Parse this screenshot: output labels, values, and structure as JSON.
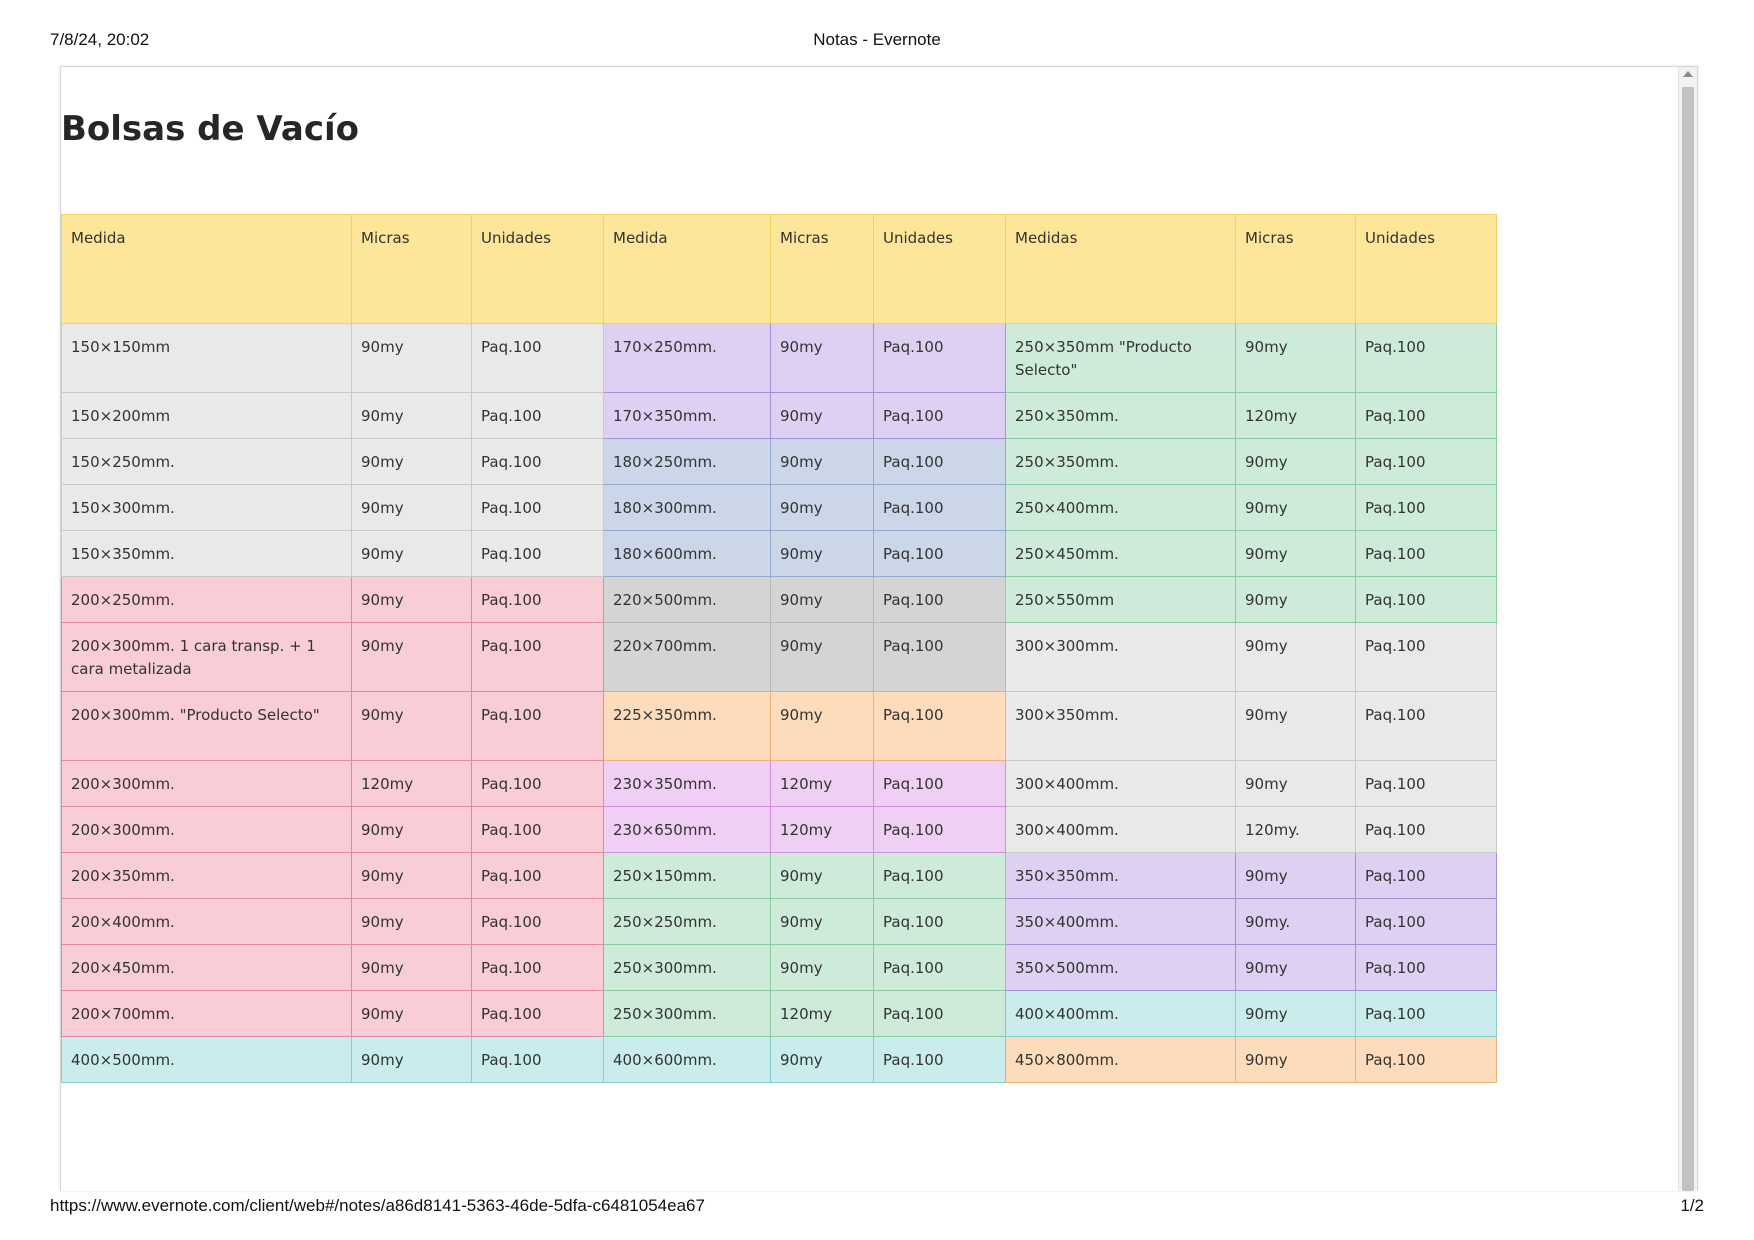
{
  "print_header": {
    "date": "7/8/24, 20:02",
    "title": "Notas - Evernote"
  },
  "print_footer": {
    "url": "https://www.evernote.com/client/web#/notes/a86d8141-5363-46de-5dfa-c6481054ea67",
    "page": "1/2"
  },
  "note": {
    "title": "Bolsas de Vacío"
  },
  "table": {
    "headers": [
      "Medida",
      "Micras",
      "Unidades",
      "Medida",
      "Micras",
      "Unidades",
      "Medidas",
      "Micras",
      "Unidades"
    ],
    "rows": [
      [
        [
          "150×150mm",
          "gray"
        ],
        [
          "90my",
          "gray"
        ],
        [
          "Paq.100",
          "gray"
        ],
        [
          "170×250mm.",
          "purple"
        ],
        [
          "90my",
          "purple"
        ],
        [
          "Paq.100",
          "purple"
        ],
        [
          "250×350mm \"Producto Selecto\"",
          "green"
        ],
        [
          "90my",
          "green"
        ],
        [
          "Paq.100",
          "green"
        ]
      ],
      [
        [
          "150×200mm",
          "gray"
        ],
        [
          "90my",
          "gray"
        ],
        [
          "Paq.100",
          "gray"
        ],
        [
          "170×350mm.",
          "purple"
        ],
        [
          "90my",
          "purple"
        ],
        [
          "Paq.100",
          "purple"
        ],
        [
          "250×350mm.",
          "green"
        ],
        [
          "120my",
          "green"
        ],
        [
          "Paq.100",
          "green"
        ]
      ],
      [
        [
          "150×250mm.",
          "gray"
        ],
        [
          "90my",
          "gray"
        ],
        [
          "Paq.100",
          "gray"
        ],
        [
          "180×250mm.",
          "blue"
        ],
        [
          "90my",
          "blue"
        ],
        [
          "Paq.100",
          "blue"
        ],
        [
          "250×350mm.",
          "green"
        ],
        [
          "90my",
          "green"
        ],
        [
          "Paq.100",
          "green"
        ]
      ],
      [
        [
          "150×300mm.",
          "gray"
        ],
        [
          "90my",
          "gray"
        ],
        [
          "Paq.100",
          "gray"
        ],
        [
          "180×300mm.",
          "blue"
        ],
        [
          "90my",
          "blue"
        ],
        [
          "Paq.100",
          "blue"
        ],
        [
          "250×400mm.",
          "green"
        ],
        [
          "90my",
          "green"
        ],
        [
          "Paq.100",
          "green"
        ]
      ],
      [
        [
          "150×350mm.",
          "gray"
        ],
        [
          "90my",
          "gray"
        ],
        [
          "Paq.100",
          "gray"
        ],
        [
          "180×600mm.",
          "blue"
        ],
        [
          "90my",
          "blue"
        ],
        [
          "Paq.100",
          "blue"
        ],
        [
          "250×450mm.",
          "green"
        ],
        [
          "90my",
          "green"
        ],
        [
          "Paq.100",
          "green"
        ]
      ],
      [
        [
          "200×250mm.",
          "pink"
        ],
        [
          "90my",
          "pink"
        ],
        [
          "Paq.100",
          "pink"
        ],
        [
          "220×500mm.",
          "dgray"
        ],
        [
          "90my",
          "dgray"
        ],
        [
          "Paq.100",
          "dgray"
        ],
        [
          "250×550mm",
          "green"
        ],
        [
          "90my",
          "green"
        ],
        [
          "Paq.100",
          "green"
        ]
      ],
      [
        [
          "200×300mm. 1 cara transp. + 1 cara metalizada",
          "pink"
        ],
        [
          "90my",
          "pink"
        ],
        [
          "Paq.100",
          "pink"
        ],
        [
          "220×700mm.",
          "dgray"
        ],
        [
          "90my",
          "dgray"
        ],
        [
          "Paq.100",
          "dgray"
        ],
        [
          "300×300mm.",
          "gray"
        ],
        [
          "90my",
          "gray"
        ],
        [
          "Paq.100",
          "gray"
        ]
      ],
      [
        [
          "200×300mm. \"Producto Selecto\"",
          "pink"
        ],
        [
          "90my",
          "pink"
        ],
        [
          "Paq.100",
          "pink"
        ],
        [
          "225×350mm.",
          "peach"
        ],
        [
          "90my",
          "peach"
        ],
        [
          "Paq.100",
          "peach"
        ],
        [
          "300×350mm.",
          "gray"
        ],
        [
          "90my",
          "gray"
        ],
        [
          "Paq.100",
          "gray"
        ]
      ],
      [
        [
          "200×300mm.",
          "pink"
        ],
        [
          "120my",
          "pink"
        ],
        [
          "Paq.100",
          "pink"
        ],
        [
          "230×350mm.",
          "lilac"
        ],
        [
          "120my",
          "lilac"
        ],
        [
          "Paq.100",
          "lilac"
        ],
        [
          "300×400mm.",
          "gray"
        ],
        [
          "90my",
          "gray"
        ],
        [
          "Paq.100",
          "gray"
        ]
      ],
      [
        [
          "200×300mm.",
          "pink"
        ],
        [
          "90my",
          "pink"
        ],
        [
          "Paq.100",
          "pink"
        ],
        [
          "230×650mm.",
          "lilac"
        ],
        [
          "120my",
          "lilac"
        ],
        [
          "Paq.100",
          "lilac"
        ],
        [
          "300×400mm.",
          "gray"
        ],
        [
          "120my.",
          "gray"
        ],
        [
          "Paq.100",
          "gray"
        ]
      ],
      [
        [
          "200×350mm.",
          "pink"
        ],
        [
          "90my",
          "pink"
        ],
        [
          "Paq.100",
          "pink"
        ],
        [
          "250×150mm.",
          "green"
        ],
        [
          "90my",
          "green"
        ],
        [
          "Paq.100",
          "green"
        ],
        [
          "350×350mm.",
          "purple"
        ],
        [
          "90my",
          "purple"
        ],
        [
          "Paq.100",
          "purple"
        ]
      ],
      [
        [
          "200×400mm.",
          "pink"
        ],
        [
          "90my",
          "pink"
        ],
        [
          "Paq.100",
          "pink"
        ],
        [
          "250×250mm.",
          "green"
        ],
        [
          "90my",
          "green"
        ],
        [
          "Paq.100",
          "green"
        ],
        [
          "350×400mm.",
          "purple"
        ],
        [
          "90my.",
          "purple"
        ],
        [
          "Paq.100",
          "purple"
        ]
      ],
      [
        [
          "200×450mm.",
          "pink"
        ],
        [
          "90my",
          "pink"
        ],
        [
          "Paq.100",
          "pink"
        ],
        [
          "250×300mm.",
          "green"
        ],
        [
          "90my",
          "green"
        ],
        [
          "Paq.100",
          "green"
        ],
        [
          "350×500mm.",
          "purple"
        ],
        [
          "90my",
          "purple"
        ],
        [
          "Paq.100",
          "purple"
        ]
      ],
      [
        [
          "200×700mm.",
          "pink"
        ],
        [
          "90my",
          "pink"
        ],
        [
          "Paq.100",
          "pink"
        ],
        [
          "250×300mm.",
          "green"
        ],
        [
          "120my",
          "green"
        ],
        [
          "Paq.100",
          "green"
        ],
        [
          "400×400mm.",
          "cyan"
        ],
        [
          "90my",
          "cyan"
        ],
        [
          "Paq.100",
          "cyan"
        ]
      ],
      [
        [
          "400×500mm.",
          "cyan"
        ],
        [
          "90my",
          "cyan"
        ],
        [
          "Paq.100",
          "cyan"
        ],
        [
          "400×600mm.",
          "cyan"
        ],
        [
          "90my",
          "cyan"
        ],
        [
          "Paq.100",
          "cyan"
        ],
        [
          "450×800mm.",
          "peach"
        ],
        [
          "90my",
          "peach"
        ],
        [
          "Paq.100",
          "peach"
        ]
      ]
    ]
  }
}
